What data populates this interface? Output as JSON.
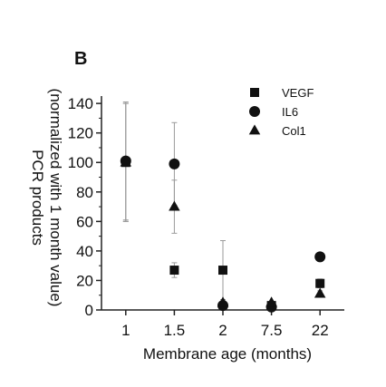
{
  "chart_data": {
    "type": "scatter",
    "panel_label": "B",
    "xlabel": "Membrane age (months)",
    "ylabel_line1": "PCR products",
    "ylabel_line2": "(normalized with 1 month value)",
    "categories": [
      "1",
      "1.5",
      "2",
      "7.5",
      "22"
    ],
    "ylim": [
      0,
      145
    ],
    "yticks": [
      0,
      20,
      40,
      60,
      80,
      100,
      120,
      140
    ],
    "legend_position": "top-right",
    "series": [
      {
        "name": "VEGF",
        "marker": "square",
        "values": [
          100,
          27,
          27,
          3,
          18
        ],
        "error": [
          40,
          5,
          20,
          1,
          3
        ]
      },
      {
        "name": "IL6",
        "marker": "circle",
        "values": [
          101,
          99,
          3,
          2,
          36
        ],
        "error": [
          40,
          28,
          2,
          1,
          3
        ]
      },
      {
        "name": "Col1",
        "marker": "triangle",
        "values": [
          100,
          70,
          5,
          5,
          11
        ],
        "error": [
          40,
          18,
          2,
          1,
          2
        ]
      }
    ]
  }
}
